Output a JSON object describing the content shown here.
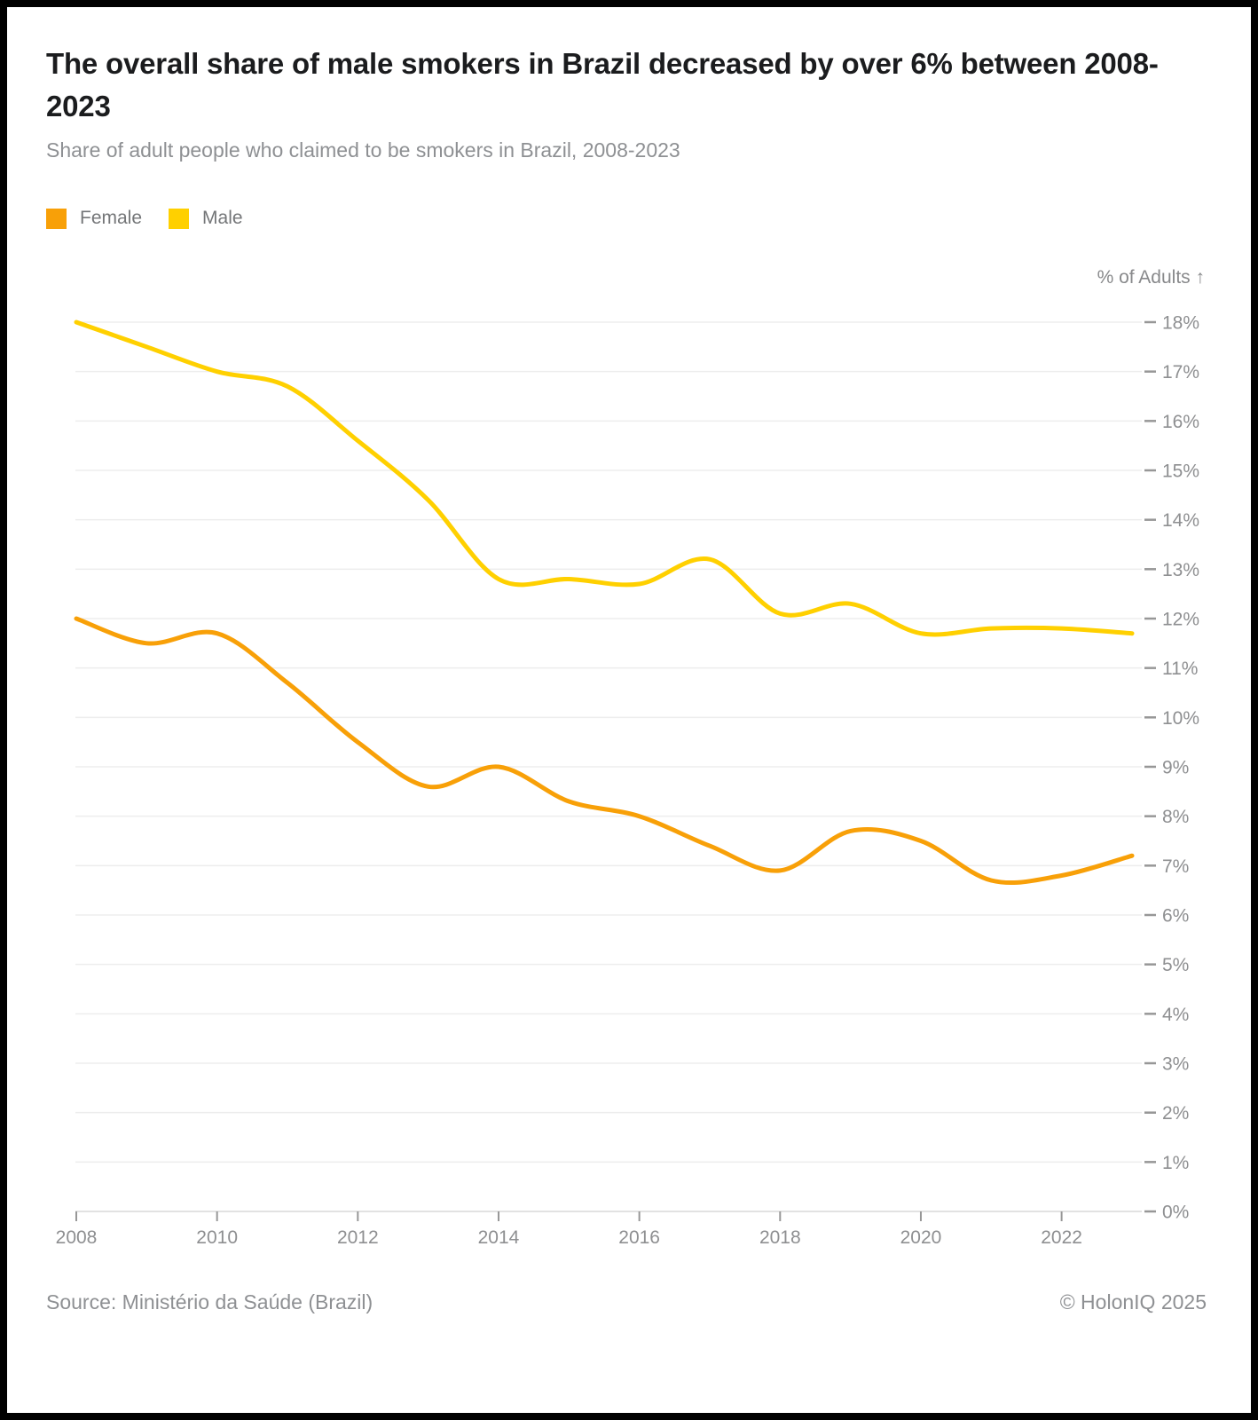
{
  "header": {
    "title": "The overall share of male smokers in Brazil decreased by over 6% between 2008-2023",
    "subtitle": "Share of adult people who claimed to be smokers in Brazil, 2008-2023"
  },
  "legend": {
    "items": [
      {
        "label": "Female",
        "color": "#F8A008"
      },
      {
        "label": "Male",
        "color": "#FFD000"
      }
    ]
  },
  "footer": {
    "source": "Source: Ministério da Saúde (Brazil)",
    "copyright": "© HolonIQ 2025"
  },
  "colors": {
    "female_line": "#F8A008",
    "male_line": "#FFD000",
    "gridline": "#ededed",
    "axis_line": "#e2e2e2",
    "tick_mark": "#979797",
    "tick_label": "#8e8f91",
    "title_text": "#1b1c1e",
    "muted_text": "#8e9093"
  },
  "chart_data": {
    "type": "line",
    "x": [
      2008,
      2009,
      2010,
      2011,
      2012,
      2013,
      2014,
      2015,
      2016,
      2017,
      2018,
      2019,
      2020,
      2021,
      2022,
      2023
    ],
    "series": [
      {
        "name": "Female",
        "color": "#F8A008",
        "values": [
          12.0,
          11.5,
          11.7,
          10.7,
          9.5,
          8.6,
          9.0,
          8.3,
          8.0,
          7.4,
          6.9,
          7.7,
          7.5,
          6.7,
          6.8,
          7.2
        ]
      },
      {
        "name": "Male",
        "color": "#FFD000",
        "values": [
          18.0,
          17.5,
          17.0,
          16.7,
          15.6,
          14.4,
          12.8,
          12.8,
          12.7,
          13.2,
          12.1,
          12.3,
          11.7,
          11.8,
          11.8,
          11.7
        ]
      }
    ],
    "title": "Share of adult people who claimed to be smokers in Brazil, 2008-2023",
    "xlabel": "",
    "ylabel": "% of Adults ↑",
    "xlim": [
      2008,
      2023
    ],
    "ylim": [
      0,
      18
    ],
    "grid": true,
    "legend_position": "top-left",
    "x_tick_values": [
      2008,
      2010,
      2012,
      2014,
      2016,
      2018,
      2020,
      2022
    ],
    "x_tick_labels": [
      "2008",
      "2010",
      "2012",
      "2014",
      "2016",
      "2018",
      "2020",
      "2022"
    ],
    "y_tick_values": [
      0,
      1,
      2,
      3,
      4,
      5,
      6,
      7,
      8,
      9,
      10,
      11,
      12,
      13,
      14,
      15,
      16,
      17,
      18
    ],
    "y_tick_labels": [
      "0%",
      "1%",
      "2%",
      "3%",
      "4%",
      "5%",
      "6%",
      "7%",
      "8%",
      "9%",
      "10%",
      "11%",
      "12%",
      "13%",
      "14%",
      "15%",
      "16%",
      "17%",
      "18%"
    ]
  }
}
